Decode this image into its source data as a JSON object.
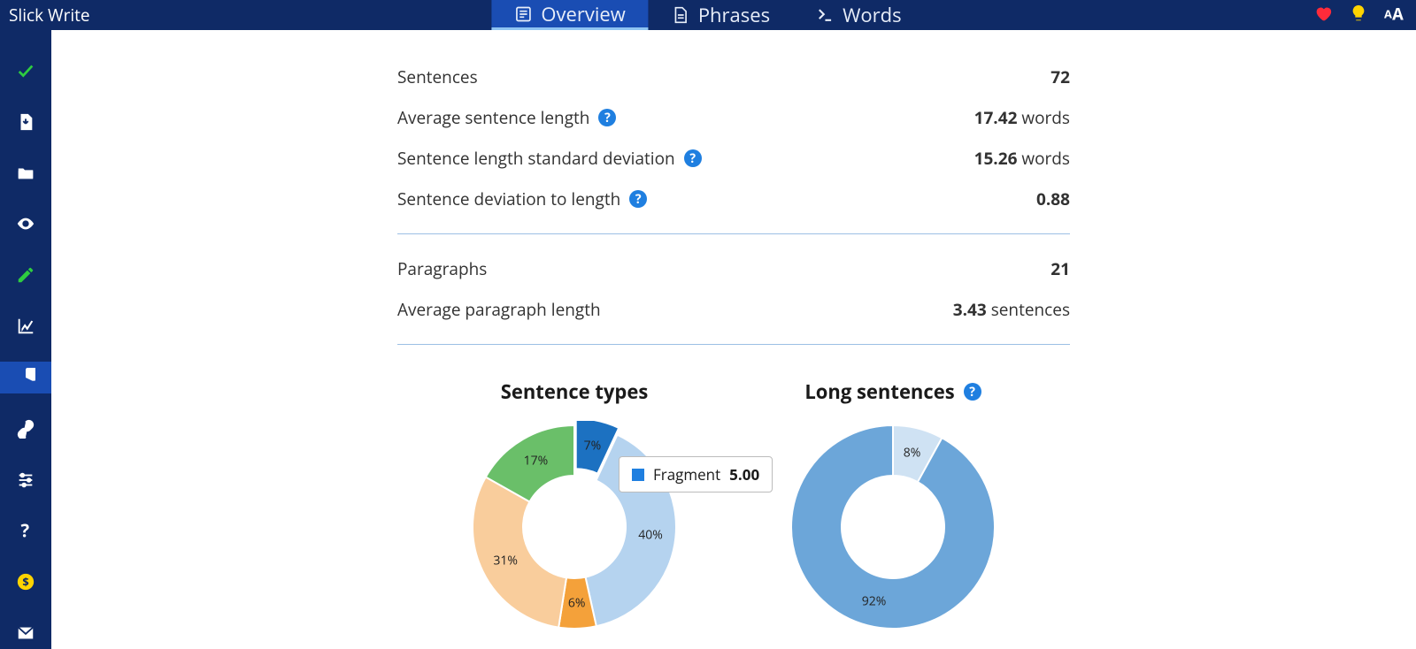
{
  "brand": "Slick Write",
  "tabs": {
    "overview": "Overview",
    "phrases": "Phrases",
    "words": "Words"
  },
  "sidebar": {
    "items": [
      "check",
      "download",
      "folder",
      "eye",
      "edit",
      "line-chart",
      "pie-chart",
      "link",
      "sliders",
      "help",
      "donate",
      "mail"
    ],
    "active_index": 6
  },
  "top_icons": [
    "heart",
    "lightbulb",
    "font-size"
  ],
  "stats": {
    "sentences": {
      "label": "Sentences",
      "value": "72"
    },
    "avg_sentence_len": {
      "label": "Average sentence length",
      "value": "17.42",
      "unit": " words",
      "help": true
    },
    "sentence_len_sd": {
      "label": "Sentence length standard deviation",
      "value": "15.26",
      "unit": " words",
      "help": true
    },
    "sentence_dev_to_len": {
      "label": "Sentence deviation to length",
      "value": "0.88",
      "help": true
    },
    "paragraphs": {
      "label": "Paragraphs",
      "value": "21"
    },
    "avg_para_len": {
      "label": "Average paragraph length",
      "value": "3.43",
      "unit": " sentences"
    }
  },
  "charts": {
    "sentence_types": {
      "title": "Sentence types",
      "type": "donut",
      "inner_radius": 58,
      "outer_radius": 115,
      "slices": [
        {
          "label": "7%",
          "value": 7,
          "color": "#1c71c1",
          "explode": 8
        },
        {
          "label": "40%",
          "value": 40,
          "color": "#b5d3ef"
        },
        {
          "label": "6%",
          "value": 6,
          "color": "#f4a13a"
        },
        {
          "label": "31%",
          "value": 31,
          "color": "#f9cd9c"
        },
        {
          "label": "17%",
          "value": 17,
          "color": "#6abf69"
        }
      ],
      "label_fontsize": 14,
      "tooltip": {
        "swatch": "#1c71c1",
        "name": "Fragment",
        "value": "5.00"
      }
    },
    "long_sentences": {
      "title": "Long sentences",
      "help": true,
      "type": "donut",
      "inner_radius": 58,
      "outer_radius": 115,
      "slices": [
        {
          "label": "8%",
          "value": 8,
          "color": "#cfe2f3"
        },
        {
          "label": "92%",
          "value": 92,
          "color": "#6ca6d9"
        }
      ],
      "label_fontsize": 14
    }
  },
  "colors": {
    "navbar_bg": "#0f2a66",
    "tab_active_bg": "#1a4db3",
    "tab_underline": "#8fc4f2",
    "hr": "#9cbfe4",
    "help_bg": "#1f7fe0",
    "heart": "#ff2b3a",
    "bulb": "#ffd400"
  }
}
